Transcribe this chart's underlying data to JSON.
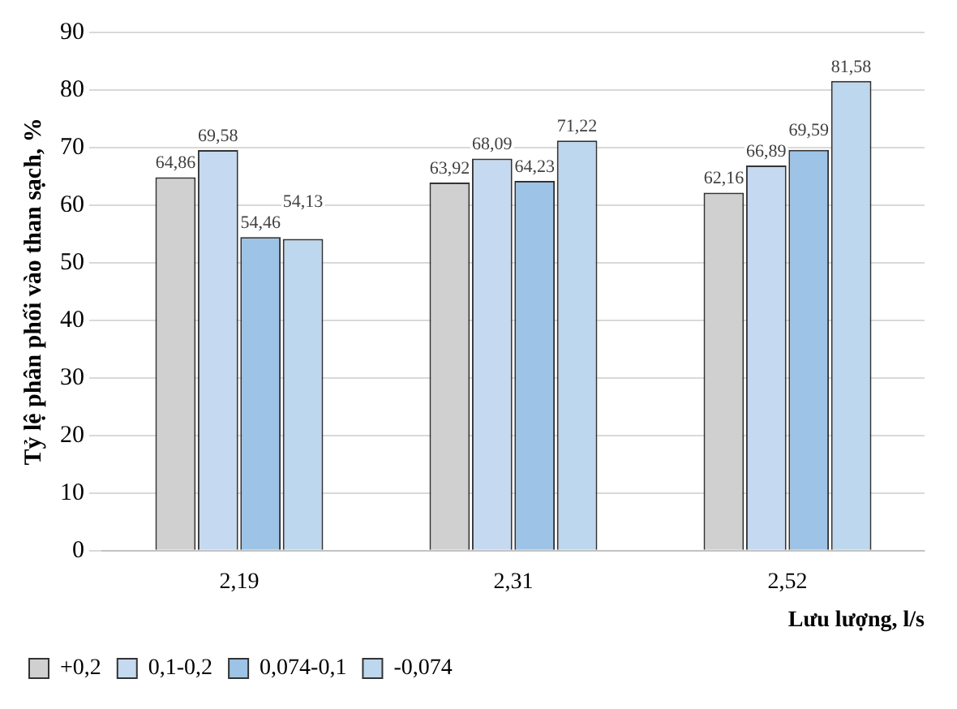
{
  "chart_data": {
    "type": "bar",
    "xlabel": "Lưu lượng, l/s",
    "ylabel": "Tỷ lệ phân phối vào than sạch, %",
    "categories": [
      "2,19",
      "2,31",
      "2,52"
    ],
    "series": [
      {
        "name": "+0,2",
        "color": "#d0d0d0",
        "values": [
          64.86,
          63.92,
          62.16
        ],
        "value_labels": [
          "64,86",
          "63,92",
          "62,16"
        ]
      },
      {
        "name": "0,1-0,2",
        "color": "#c5d9f1",
        "values": [
          69.58,
          68.09,
          66.89
        ],
        "value_labels": [
          "69,58",
          "68,09",
          "66,89"
        ]
      },
      {
        "name": "0,074-0,1",
        "color": "#9dc3e6",
        "values": [
          54.46,
          64.23,
          69.59
        ],
        "value_labels": [
          "54,46",
          "64,23",
          "69,59"
        ]
      },
      {
        "name": "-0,074",
        "color": "#bdd7ee",
        "values": [
          54.13,
          71.22,
          81.58
        ],
        "value_labels": [
          "54,13",
          "71,22",
          "81,58"
        ]
      }
    ],
    "ylim": [
      0,
      90
    ],
    "yticks": [
      0,
      10,
      20,
      30,
      40,
      50,
      60,
      70,
      80,
      90
    ],
    "grid": "y",
    "legend": "bottom left"
  }
}
